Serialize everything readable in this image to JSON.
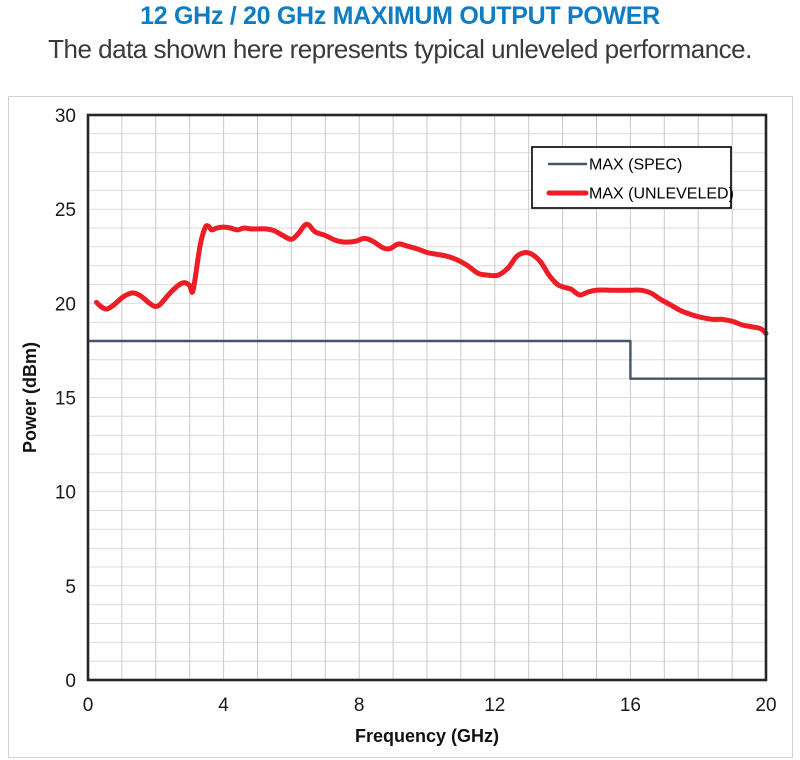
{
  "header": {
    "title": "12 GHz / 20 GHz MAXIMUM OUTPUT POWER",
    "subtitle": "The data shown here represents typical unleveled performance."
  },
  "colors": {
    "title_blue": "#0E7DC3",
    "subtitle_gray": "#3A3A3A",
    "tick_label": "#1A1A1A",
    "axis_title": "#111111",
    "plot_border": "#262626",
    "gridline_vertical": "#C9C9C9",
    "gridline_horizontal": "#DBDBDB",
    "figure_border": "#D2D2D2",
    "legend_border": "#000000",
    "legend_fill": "#FFFFFF",
    "spec_line": "#44546A",
    "unleveled_line": "#EE1C25"
  },
  "chart_data": {
    "type": "line",
    "title": "12 GHz / 20 GHz MAXIMUM OUTPUT POWER",
    "subtitle": "The data shown here represents typical unleveled performance.",
    "xlabel": "Frequency (GHz)",
    "ylabel": "Power (dBm)",
    "xlim": [
      0,
      20
    ],
    "ylim": [
      0,
      30
    ],
    "x_ticks": [
      0,
      4,
      8,
      12,
      16,
      20
    ],
    "y_ticks": [
      0,
      5,
      10,
      15,
      20,
      25,
      30
    ],
    "x_grid_step": 1,
    "y_grid_step": 1,
    "grid": true,
    "legend_position": "top-right",
    "series": [
      {
        "name": "MAX (SPEC)",
        "color": "#44546A",
        "width": 2.4,
        "smooth": false,
        "points": [
          [
            0,
            18
          ],
          [
            16,
            18
          ],
          [
            16,
            16
          ],
          [
            20,
            16
          ]
        ]
      },
      {
        "name": "MAX (UNLEVELED)",
        "color": "#EE1C25",
        "width": 5,
        "smooth": true,
        "points": [
          [
            0.25,
            20.05
          ],
          [
            0.4,
            19.8
          ],
          [
            0.55,
            19.7
          ],
          [
            0.75,
            19.9
          ],
          [
            1.0,
            20.3
          ],
          [
            1.2,
            20.5
          ],
          [
            1.35,
            20.55
          ],
          [
            1.55,
            20.4
          ],
          [
            1.75,
            20.1
          ],
          [
            1.95,
            19.85
          ],
          [
            2.1,
            19.9
          ],
          [
            2.3,
            20.3
          ],
          [
            2.5,
            20.7
          ],
          [
            2.7,
            21.0
          ],
          [
            2.85,
            21.1
          ],
          [
            3.0,
            20.95
          ],
          [
            3.1,
            20.7
          ],
          [
            3.3,
            23.0
          ],
          [
            3.45,
            24.0
          ],
          [
            3.55,
            24.1
          ],
          [
            3.65,
            23.9
          ],
          [
            3.8,
            24.0
          ],
          [
            4.0,
            24.05
          ],
          [
            4.2,
            24.0
          ],
          [
            4.4,
            23.9
          ],
          [
            4.6,
            24.0
          ],
          [
            4.8,
            23.95
          ],
          [
            5.0,
            23.95
          ],
          [
            5.25,
            23.95
          ],
          [
            5.5,
            23.85
          ],
          [
            5.75,
            23.6
          ],
          [
            6.0,
            23.4
          ],
          [
            6.2,
            23.7
          ],
          [
            6.45,
            24.2
          ],
          [
            6.7,
            23.8
          ],
          [
            7.0,
            23.6
          ],
          [
            7.3,
            23.35
          ],
          [
            7.6,
            23.25
          ],
          [
            7.9,
            23.3
          ],
          [
            8.15,
            23.45
          ],
          [
            8.4,
            23.3
          ],
          [
            8.7,
            22.95
          ],
          [
            8.9,
            22.9
          ],
          [
            9.15,
            23.15
          ],
          [
            9.4,
            23.05
          ],
          [
            9.7,
            22.9
          ],
          [
            10.0,
            22.7
          ],
          [
            10.3,
            22.6
          ],
          [
            10.6,
            22.5
          ],
          [
            10.9,
            22.3
          ],
          [
            11.2,
            22.0
          ],
          [
            11.5,
            21.6
          ],
          [
            11.8,
            21.5
          ],
          [
            12.1,
            21.5
          ],
          [
            12.4,
            21.9
          ],
          [
            12.65,
            22.5
          ],
          [
            12.9,
            22.7
          ],
          [
            13.1,
            22.6
          ],
          [
            13.35,
            22.2
          ],
          [
            13.6,
            21.5
          ],
          [
            13.85,
            21.0
          ],
          [
            14.05,
            20.85
          ],
          [
            14.25,
            20.75
          ],
          [
            14.5,
            20.45
          ],
          [
            14.75,
            20.6
          ],
          [
            15.0,
            20.7
          ],
          [
            15.5,
            20.7
          ],
          [
            16.0,
            20.7
          ],
          [
            16.3,
            20.7
          ],
          [
            16.6,
            20.55
          ],
          [
            16.9,
            20.2
          ],
          [
            17.2,
            19.9
          ],
          [
            17.5,
            19.6
          ],
          [
            17.8,
            19.4
          ],
          [
            18.1,
            19.25
          ],
          [
            18.4,
            19.15
          ],
          [
            18.7,
            19.15
          ],
          [
            19.0,
            19.05
          ],
          [
            19.3,
            18.85
          ],
          [
            19.6,
            18.75
          ],
          [
            19.85,
            18.65
          ],
          [
            20.0,
            18.4
          ]
        ]
      }
    ]
  }
}
